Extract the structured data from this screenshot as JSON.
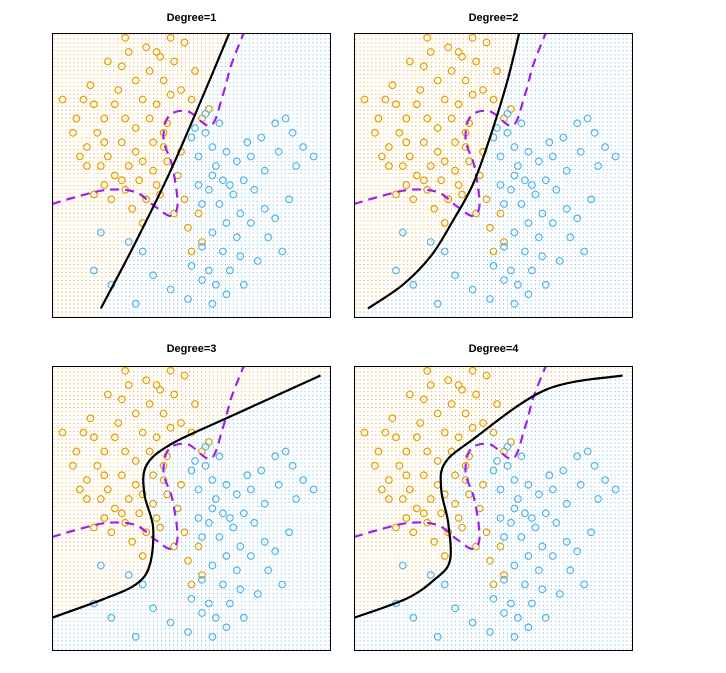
{
  "figure": {
    "colors": {
      "class_orange": "#E69F00",
      "class_blue": "#56B4E9",
      "bayes_boundary": "#A020F0",
      "fitted_boundary": "#000000",
      "frame": "#000000",
      "background": "#FFFFFF"
    },
    "legend": "none"
  },
  "chart_data": [
    {
      "type": "scatter",
      "title": "Degree=1",
      "fit": "logistic regression, polynomial degree 1",
      "fitted_boundary": [
        [
          -2.6,
          -2.8
        ],
        [
          -1.6,
          -1.4
        ],
        [
          -0.6,
          0.1
        ],
        [
          0.4,
          1.8
        ],
        [
          1.2,
          3.2
        ]
      ],
      "series": []
    },
    {
      "type": "scatter",
      "title": "Degree=2",
      "fit": "logistic regression, polynomial degree 2",
      "fitted_boundary": [
        [
          -3.6,
          -2.8
        ],
        [
          -2.6,
          -2.3
        ],
        [
          -1.8,
          -1.7
        ],
        [
          -1.2,
          -1.0
        ],
        [
          -0.6,
          -0.2
        ],
        [
          -0.1,
          0.8
        ],
        [
          0.4,
          2.0
        ],
        [
          0.8,
          3.2
        ]
      ],
      "series": []
    },
    {
      "type": "scatter",
      "title": "Degree=3",
      "fit": "logistic regression, polynomial degree 3",
      "fitted_boundary": [
        [
          -4,
          -2.3
        ],
        [
          -2.5,
          -1.9
        ],
        [
          -1.6,
          -1.6
        ],
        [
          -1.2,
          -1.2
        ],
        [
          -1.1,
          -0.4
        ],
        [
          -1.35,
          0.3
        ],
        [
          -1.3,
          0.9
        ],
        [
          -0.6,
          1.35
        ],
        [
          1.0,
          1.9
        ],
        [
          3.7,
          2.8
        ]
      ],
      "series": []
    },
    {
      "type": "scatter",
      "title": "Degree=4",
      "fit": "logistic regression, polynomial degree 4",
      "fitted_boundary": [
        [
          -4,
          -2.3
        ],
        [
          -2.5,
          -1.9
        ],
        [
          -1.7,
          -1.5
        ],
        [
          -1.25,
          -1.1
        ],
        [
          -1.3,
          -0.3
        ],
        [
          -1.5,
          0.4
        ],
        [
          -1.4,
          0.95
        ],
        [
          -0.6,
          1.45
        ],
        [
          1.5,
          2.5
        ],
        [
          3.7,
          2.8
        ]
      ],
      "series": []
    }
  ],
  "shared": {
    "xlim": [
      -4,
      4
    ],
    "ylim": [
      -3,
      3
    ],
    "bayes_boundary": [
      [
        -4,
        -0.6
      ],
      [
        -3.3,
        -0.45
      ],
      [
        -2.4,
        -0.3
      ],
      [
        -1.6,
        -0.35
      ],
      [
        -1.05,
        -0.65
      ],
      [
        -0.6,
        -0.85
      ],
      [
        -0.4,
        -0.6
      ],
      [
        -0.55,
        0.2
      ],
      [
        -0.8,
        0.75
      ],
      [
        -0.65,
        1.25
      ],
      [
        -0.1,
        1.35
      ],
      [
        0.55,
        1.05
      ],
      [
        0.9,
        1.7
      ],
      [
        1.15,
        2.35
      ],
      [
        1.5,
        3.0
      ]
    ],
    "orange_points": [
      [
        -3.7,
        1.6
      ],
      [
        -3.3,
        1.2
      ],
      [
        -3.1,
        1.6
      ],
      [
        -2.8,
        1.5
      ],
      [
        -2.5,
        1.2
      ],
      [
        -2.2,
        1.5
      ],
      [
        -2.7,
        0.9
      ],
      [
        -3.0,
        0.6
      ],
      [
        -2.4,
        0.4
      ],
      [
        -2.0,
        0.7
      ],
      [
        -1.6,
        0.5
      ],
      [
        -2.6,
        0.2
      ],
      [
        -2.2,
        0.0
      ],
      [
        -1.8,
        0.2
      ],
      [
        -1.4,
        0.3
      ],
      [
        -1.1,
        0.7
      ],
      [
        -0.8,
        0.9
      ],
      [
        -1.2,
        1.2
      ],
      [
        -1.6,
        1.0
      ],
      [
        -1.9,
        1.2
      ],
      [
        -1.4,
        1.6
      ],
      [
        -1.0,
        1.5
      ],
      [
        -0.6,
        1.7
      ],
      [
        -0.3,
        1.8
      ],
      [
        0.0,
        1.6
      ],
      [
        -0.8,
        2.0
      ],
      [
        -1.2,
        2.2
      ],
      [
        -1.6,
        2.0
      ],
      [
        -2.0,
        2.3
      ],
      [
        -2.4,
        2.4
      ],
      [
        -1.8,
        2.6
      ],
      [
        -1.3,
        2.7
      ],
      [
        -0.9,
        2.5
      ],
      [
        -0.5,
        2.4
      ],
      [
        0.1,
        2.2
      ],
      [
        -0.2,
        2.8
      ],
      [
        -0.6,
        2.9
      ],
      [
        -1.0,
        2.6
      ],
      [
        0.5,
        1.4
      ],
      [
        0.3,
        1.2
      ],
      [
        -3.4,
        0.9
      ],
      [
        -3.0,
        0.2
      ],
      [
        -2.8,
        -0.4
      ],
      [
        -2.3,
        -0.5
      ],
      [
        -1.9,
        -0.3
      ],
      [
        -1.5,
        -0.1
      ],
      [
        -1.1,
        0.1
      ],
      [
        -0.7,
        0.3
      ],
      [
        -0.4,
        0.0
      ],
      [
        -0.9,
        -0.4
      ],
      [
        -0.5,
        -0.8
      ],
      [
        -0.2,
        -0.5
      ],
      [
        -0.1,
        -1.1
      ],
      [
        0.2,
        -0.8
      ],
      [
        0.0,
        -1.6
      ],
      [
        -2.5,
        0.7
      ],
      [
        -1.3,
        -0.5
      ],
      [
        -0.8,
        0.6
      ],
      [
        -2.9,
        1.9
      ],
      [
        -2.1,
        1.8
      ],
      [
        -3.2,
        0.4
      ],
      [
        -2.5,
        -0.2
      ],
      [
        -1.7,
        -0.7
      ],
      [
        -1.4,
        -1.0
      ],
      [
        0.3,
        -1.4
      ],
      [
        -0.3,
        0.5
      ],
      [
        -1.9,
        2.9
      ],
      [
        -0.7,
        1.1
      ],
      [
        -2.0,
        -0.1
      ],
      [
        -1.0,
        -0.2
      ]
    ],
    "blue_points": [
      [
        0.4,
        0.9
      ],
      [
        0.6,
        0.6
      ],
      [
        0.2,
        0.4
      ],
      [
        0.7,
        0.2
      ],
      [
        1.0,
        0.5
      ],
      [
        1.3,
        0.3
      ],
      [
        0.9,
        -0.1
      ],
      [
        0.5,
        -0.3
      ],
      [
        0.3,
        -0.6
      ],
      [
        0.8,
        -0.6
      ],
      [
        1.2,
        -0.4
      ],
      [
        1.5,
        -0.1
      ],
      [
        1.7,
        0.4
      ],
      [
        2.0,
        0.8
      ],
      [
        2.4,
        1.1
      ],
      [
        2.7,
        1.2
      ],
      [
        2.9,
        0.9
      ],
      [
        3.2,
        0.6
      ],
      [
        3.5,
        0.4
      ],
      [
        2.5,
        0.5
      ],
      [
        2.1,
        0.1
      ],
      [
        1.8,
        -0.3
      ],
      [
        1.4,
        -0.8
      ],
      [
        1.0,
        -1.0
      ],
      [
        0.6,
        -1.2
      ],
      [
        0.3,
        -1.5
      ],
      [
        0.0,
        -1.9
      ],
      [
        0.5,
        -2.0
      ],
      [
        0.9,
        -1.6
      ],
      [
        1.3,
        -1.3
      ],
      [
        1.7,
        -1.0
      ],
      [
        2.1,
        -0.7
      ],
      [
        2.4,
        -0.9
      ],
      [
        2.8,
        -0.5
      ],
      [
        1.9,
        -1.8
      ],
      [
        1.5,
        -2.3
      ],
      [
        1.0,
        -2.5
      ],
      [
        0.6,
        -2.7
      ],
      [
        -0.1,
        -2.6
      ],
      [
        -0.6,
        -2.4
      ],
      [
        -1.1,
        -2.1
      ],
      [
        -1.4,
        -1.6
      ],
      [
        -1.8,
        -1.4
      ],
      [
        -2.6,
        -1.2
      ],
      [
        -2.8,
        -2.0
      ],
      [
        -2.3,
        -2.3
      ],
      [
        -1.6,
        -2.7
      ],
      [
        0.1,
        1.0
      ],
      [
        0.4,
        1.3
      ],
      [
        0.8,
        1.1
      ],
      [
        1.1,
        -0.2
      ],
      [
        0.6,
        0.0
      ],
      [
        1.4,
        -1.7
      ],
      [
        0.2,
        -0.2
      ],
      [
        1.6,
        0.7
      ],
      [
        0.0,
        0.8
      ],
      [
        2.2,
        -1.3
      ],
      [
        0.7,
        -2.3
      ],
      [
        1.1,
        -2.0
      ],
      [
        0.3,
        -2.2
      ],
      [
        2.6,
        -1.6
      ],
      [
        3.0,
        0.2
      ]
    ]
  }
}
